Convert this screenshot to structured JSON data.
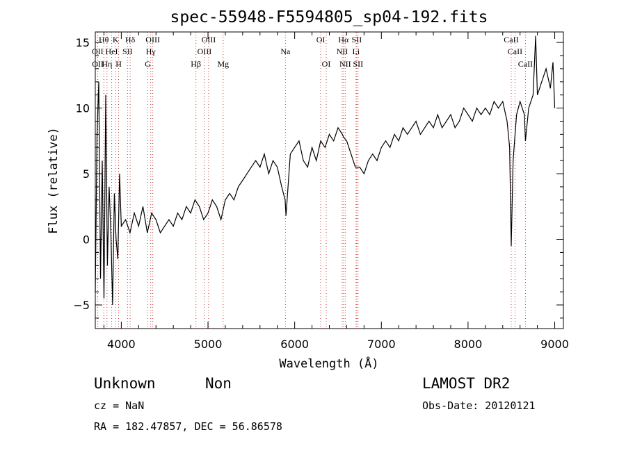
{
  "chart_data": {
    "type": "line",
    "title": "spec-55948-F5594805_sp04-192.fits",
    "xlabel": "Wavelength (Å)",
    "ylabel": "Flux (relative)",
    "xlim": [
      3700,
      9100
    ],
    "ylim": [
      -6.8,
      15.8
    ],
    "x_ticks": [
      4000,
      5000,
      6000,
      7000,
      8000,
      9000
    ],
    "y_ticks": [
      -5,
      0,
      5,
      10,
      15
    ],
    "grid": false,
    "series": [
      {
        "x": [
          3700,
          3720,
          3740,
          3760,
          3780,
          3800,
          3820,
          3840,
          3860,
          3880,
          3900,
          3920,
          3940,
          3960,
          3980,
          4000,
          4050,
          4100,
          4150,
          4200,
          4250,
          4300,
          4350,
          4400,
          4450,
          4500,
          4550,
          4600,
          4650,
          4700,
          4750,
          4800,
          4850,
          4900,
          4950,
          5000,
          5050,
          5100,
          5150,
          5200,
          5250,
          5300,
          5350,
          5400,
          5450,
          5500,
          5550,
          5600,
          5650,
          5700,
          5750,
          5800,
          5850,
          5890,
          5900,
          5950,
          6000,
          6050,
          6100,
          6150,
          6200,
          6250,
          6300,
          6350,
          6400,
          6450,
          6500,
          6550,
          6563,
          6600,
          6650,
          6700,
          6750,
          6800,
          6850,
          6900,
          6950,
          7000,
          7050,
          7100,
          7150,
          7200,
          7250,
          7300,
          7350,
          7400,
          7450,
          7500,
          7550,
          7600,
          7650,
          7700,
          7750,
          7800,
          7850,
          7900,
          7950,
          8000,
          8050,
          8100,
          8150,
          8200,
          8250,
          8300,
          8350,
          8400,
          8450,
          8480,
          8498,
          8520,
          8542,
          8560,
          8600,
          8650,
          8662,
          8700,
          8750,
          8780,
          8800,
          8850,
          8900,
          8950,
          8980,
          9000
        ],
        "y": [
          -4.0,
          8.0,
          12.0,
          -3.0,
          6.0,
          -4.5,
          11.0,
          -2.0,
          4.0,
          0.5,
          -5.0,
          3.5,
          0.0,
          -1.5,
          5.0,
          1.0,
          1.5,
          0.5,
          2.0,
          1.0,
          2.5,
          0.5,
          2.0,
          1.5,
          0.5,
          1.0,
          1.5,
          1.0,
          2.0,
          1.5,
          2.5,
          2.0,
          3.0,
          2.5,
          1.5,
          2.0,
          3.0,
          2.5,
          1.5,
          3.0,
          3.5,
          3.0,
          4.0,
          4.5,
          5.0,
          5.5,
          6.0,
          5.5,
          6.5,
          5.0,
          6.0,
          5.5,
          4.0,
          3.0,
          1.8,
          6.5,
          7.0,
          7.5,
          6.0,
          5.5,
          7.0,
          6.0,
          7.5,
          7.0,
          8.0,
          7.5,
          8.5,
          8.0,
          7.8,
          7.5,
          6.5,
          5.5,
          5.5,
          5.0,
          6.0,
          6.5,
          6.0,
          7.0,
          7.5,
          7.0,
          8.0,
          7.5,
          8.5,
          8.0,
          8.5,
          9.0,
          8.0,
          8.5,
          9.0,
          8.5,
          9.5,
          8.5,
          9.0,
          9.5,
          8.5,
          9.0,
          10.0,
          9.5,
          9.0,
          10.0,
          9.5,
          10.0,
          9.5,
          10.5,
          10.0,
          10.5,
          9.0,
          7.0,
          -0.5,
          6.0,
          8.0,
          9.5,
          10.5,
          9.5,
          7.5,
          10.0,
          11.0,
          15.5,
          11.0,
          12.0,
          13.0,
          11.5,
          13.5,
          10.0
        ]
      }
    ],
    "spectral_lines": [
      {
        "name": "OII",
        "x": 3727,
        "row": 1
      },
      {
        "name": "OII",
        "x": 3729,
        "row": 2
      },
      {
        "name": "Hθ",
        "x": 3798,
        "row": 0
      },
      {
        "name": "Hη",
        "x": 3835,
        "row": 2
      },
      {
        "name": "HeI",
        "x": 3889,
        "row": 1
      },
      {
        "name": "K",
        "x": 3934,
        "row": 0
      },
      {
        "name": "H",
        "x": 3969,
        "row": 2
      },
      {
        "name": "SII",
        "x": 4072,
        "row": 1
      },
      {
        "name": "Hδ",
        "x": 4102,
        "row": 0
      },
      {
        "name": "G",
        "x": 4305,
        "row": 2
      },
      {
        "name": "Hγ",
        "x": 4340,
        "row": 1
      },
      {
        "name": "OIII",
        "x": 4363,
        "row": 0
      },
      {
        "name": "Hβ",
        "x": 4861,
        "row": 2
      },
      {
        "name": "OIII",
        "x": 4959,
        "row": 1
      },
      {
        "name": "OIII",
        "x": 5007,
        "row": 0
      },
      {
        "name": "Mg",
        "x": 5175,
        "row": 2
      },
      {
        "name": "Na",
        "x": 5893,
        "row": 1
      },
      {
        "name": "OI",
        "x": 6300,
        "row": 0
      },
      {
        "name": "OI",
        "x": 6364,
        "row": 2
      },
      {
        "name": "NII",
        "x": 6548,
        "row": 1
      },
      {
        "name": "Hα",
        "x": 6563,
        "row": 0
      },
      {
        "name": "NII",
        "x": 6583,
        "row": 2
      },
      {
        "name": "Li",
        "x": 6708,
        "row": 1
      },
      {
        "name": "SII",
        "x": 6716,
        "row": 0
      },
      {
        "name": "SII",
        "x": 6731,
        "row": 2
      },
      {
        "name": "CaII",
        "x": 8498,
        "row": 0
      },
      {
        "name": "CaII",
        "x": 8542,
        "row": 1
      },
      {
        "name": "CaII",
        "x": 8662,
        "row": 2
      }
    ]
  },
  "info": {
    "class": "Unknown",
    "subclass": "Non",
    "survey": "LAMOST DR2",
    "cz": "cz = NaN",
    "obs_date": "Obs-Date: 20120121",
    "coords": "RA = 182.47857, DEC =  56.86578"
  },
  "colors": {
    "spectrum": "#000000",
    "line_markers": "#cc3333",
    "axes": "#000000"
  }
}
